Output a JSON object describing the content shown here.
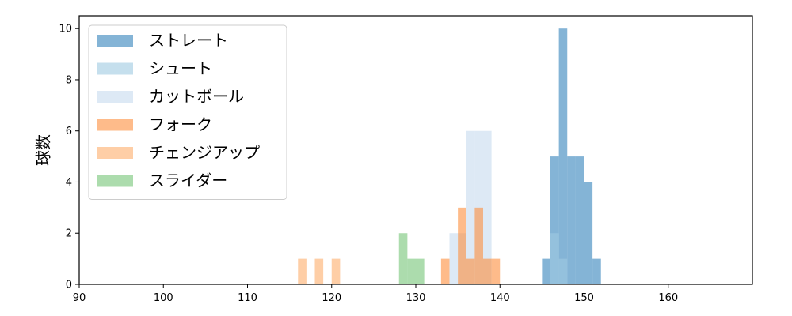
{
  "chart_data": {
    "type": "bar",
    "subtype": "overlapping-histogram",
    "title": "",
    "xlabel": "",
    "ylabel": "球数",
    "xlim": [
      90,
      170
    ],
    "ylim": [
      0,
      10.5
    ],
    "xticks": [
      90,
      100,
      110,
      120,
      130,
      140,
      150,
      160
    ],
    "yticks": [
      0,
      2,
      4,
      6,
      8,
      10
    ],
    "bin_width": 1,
    "grid": false,
    "legend_position": "top-left",
    "series": [
      {
        "name": "ストレート",
        "color": "#1f77b4",
        "opacity": 0.55,
        "bins": [
          [
            145,
            1
          ],
          [
            146,
            5
          ],
          [
            147,
            10
          ],
          [
            148,
            5
          ],
          [
            149,
            5
          ],
          [
            150,
            4
          ],
          [
            151,
            1
          ]
        ]
      },
      {
        "name": "シュート",
        "color": "#9ecae1",
        "opacity": 0.6,
        "bins": [
          [
            146,
            2
          ],
          [
            147,
            1
          ]
        ]
      },
      {
        "name": "カットボール",
        "color": "#c6dbef",
        "opacity": 0.6,
        "bins": [
          [
            134,
            2
          ],
          [
            135,
            2
          ],
          [
            136,
            6
          ],
          [
            137,
            6
          ],
          [
            138,
            6
          ]
        ]
      },
      {
        "name": "フォーク",
        "color": "#fd8d3c",
        "opacity": 0.6,
        "bins": [
          [
            133,
            1
          ],
          [
            135,
            3
          ],
          [
            136,
            1
          ],
          [
            137,
            3
          ],
          [
            138,
            1
          ],
          [
            139,
            1
          ]
        ]
      },
      {
        "name": "チェンジアップ",
        "color": "#fdae6b",
        "opacity": 0.6,
        "bins": [
          [
            116,
            1
          ],
          [
            118,
            1
          ],
          [
            120,
            1
          ]
        ]
      },
      {
        "name": "スライダー",
        "color": "#74c476",
        "opacity": 0.6,
        "bins": [
          [
            128,
            2
          ],
          [
            129,
            1
          ],
          [
            130,
            1
          ]
        ]
      }
    ]
  }
}
